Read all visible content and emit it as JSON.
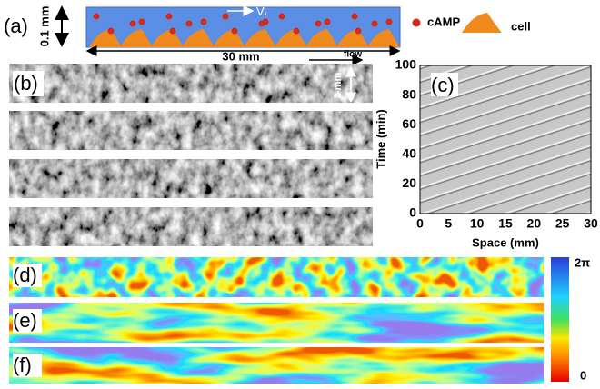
{
  "panel_a": {
    "label": "(a)",
    "velocity_label": "V",
    "velocity_subscript": "f",
    "height_label": "0.1 mm",
    "length_label": "30 mm",
    "flow_label": "flow",
    "legend": [
      "cAMP",
      "cell"
    ]
  },
  "panel_b": {
    "label": "(b)",
    "scale_label": "2 mm"
  },
  "panel_c": {
    "label": "(c)",
    "x_label": "Space (mm)",
    "y_label": "Time (min)",
    "x_ticks": [
      0,
      5,
      10,
      15,
      20,
      25,
      30
    ],
    "y_ticks": [
      0,
      20,
      40,
      60,
      80,
      100
    ]
  },
  "phase_panels": {
    "labels": [
      "(d)",
      "(e)",
      "(f)"
    ],
    "colorbar_max": "2π",
    "colorbar_min": "0"
  }
}
